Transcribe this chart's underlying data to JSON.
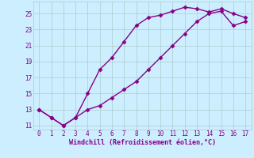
{
  "line1_x": [
    0,
    1,
    2,
    3,
    4,
    5,
    6,
    7,
    8,
    9,
    10,
    11,
    12,
    13,
    14,
    15,
    16,
    17
  ],
  "line1_y": [
    13,
    12,
    11,
    12,
    15,
    18,
    19.5,
    21.5,
    23.5,
    24.5,
    24.8,
    25.3,
    25.8,
    25.6,
    25.2,
    25.6,
    25.0,
    24.5
  ],
  "line2_x": [
    0,
    1,
    2,
    3,
    4,
    5,
    6,
    7,
    8,
    9,
    10,
    11,
    12,
    13,
    14,
    15,
    16,
    17
  ],
  "line2_y": [
    13,
    12,
    11,
    12,
    13.0,
    13.5,
    14.5,
    15.5,
    16.5,
    18.0,
    19.5,
    21.0,
    22.5,
    24.0,
    25.0,
    25.3,
    23.5,
    24.0
  ],
  "color": "#880088",
  "bg_color": "#cceeff",
  "grid_color": "#aacccc",
  "xlabel": "Windchill (Refroidissement éolien,°C)",
  "xlim": [
    -0.5,
    17.5
  ],
  "ylim": [
    10.5,
    26.5
  ],
  "xticks": [
    0,
    1,
    2,
    3,
    4,
    5,
    6,
    7,
    8,
    9,
    10,
    11,
    12,
    13,
    14,
    15,
    16,
    17
  ],
  "yticks": [
    11,
    13,
    15,
    17,
    19,
    21,
    23,
    25
  ],
  "marker": "D",
  "markersize": 2.5,
  "linewidth": 1.0,
  "tick_fontsize": 5.5,
  "xlabel_fontsize": 6.0
}
